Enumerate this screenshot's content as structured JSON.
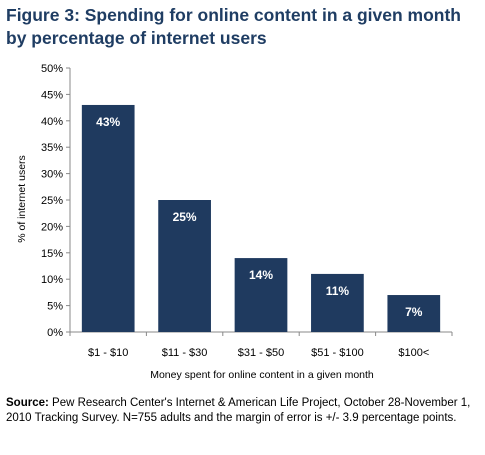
{
  "chart_data": {
    "type": "bar",
    "title": "Figure 3: Spending for online content in a given month by percentage of internet users",
    "categories": [
      "$1 - $10",
      "$11 - $30",
      "$31 - $50",
      "$51 - $100",
      "$100<"
    ],
    "values": [
      43,
      25,
      14,
      11,
      7
    ],
    "data_labels": [
      "43%",
      "25%",
      "14%",
      "11%",
      "7%"
    ],
    "xlabel": "Money spent for online content in a given month",
    "ylabel": "% of internet users",
    "ylim": [
      0,
      50
    ],
    "yticks": [
      "0%",
      "5%",
      "10%",
      "15%",
      "20%",
      "25%",
      "30%",
      "35%",
      "40%",
      "45%",
      "50%"
    ],
    "grid": false,
    "legend": "none",
    "bar_color": "#1f3a5f"
  },
  "source": {
    "label": "Source:",
    "text": " Pew Research Center's Internet & American Life Project, October 28-November 1, 2010 Tracking Survey. N=755 adults and the margin of error is +/- 3.9 percentage points."
  }
}
